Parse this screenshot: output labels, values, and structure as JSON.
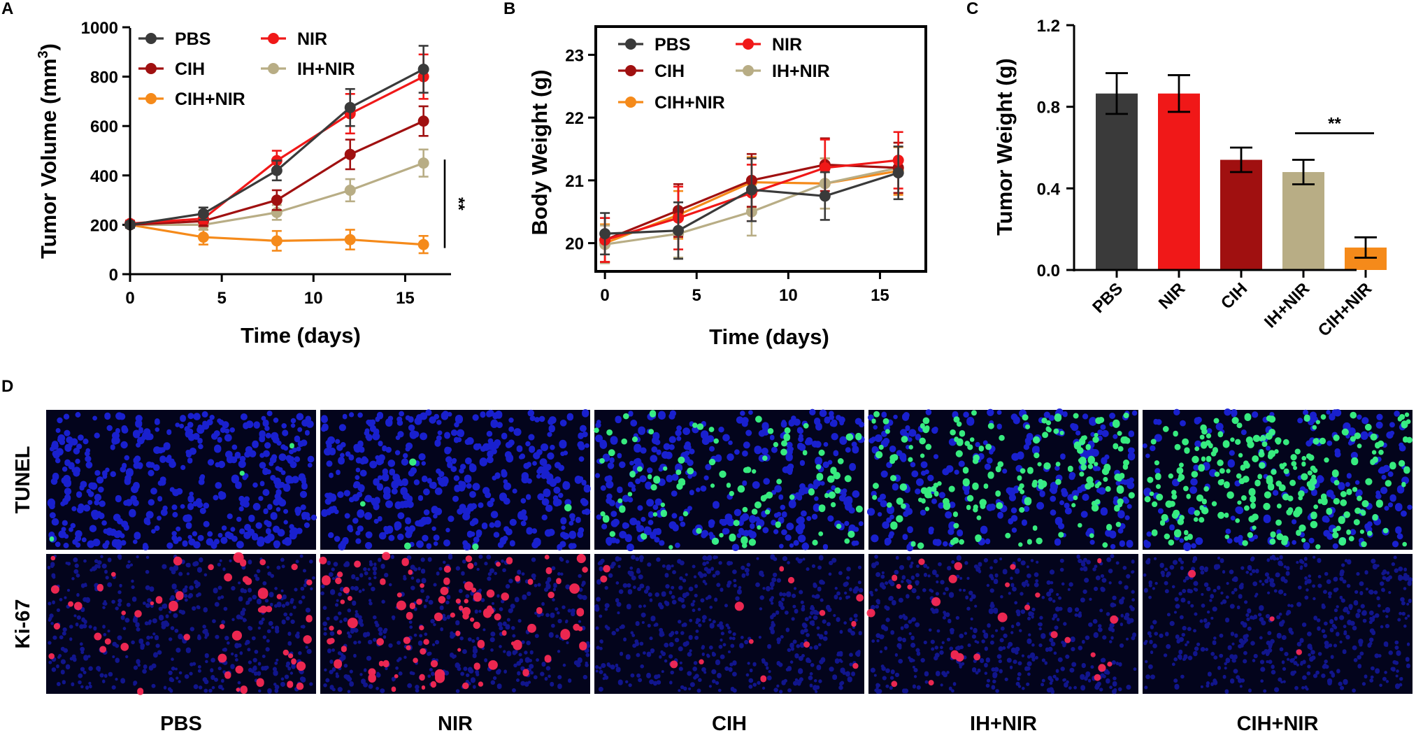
{
  "panel_labels": {
    "a": "A",
    "b": "B",
    "c": "C",
    "d": "D"
  },
  "colors": {
    "PBS": "#3a3a3a",
    "NIR": "#f01818",
    "CIH": "#a01010",
    "IH+NIR": "#b8ad85",
    "CIH+NIR": "#f58a1a",
    "cell_bg": "#03041c",
    "nucleus": "#1a22d8",
    "tunel": "#3cff88",
    "ki67": "#ff2a55"
  },
  "chart_data": [
    {
      "id": "A",
      "type": "line",
      "xlabel": "Time (days)",
      "ylabel_base": "Tumor Volume (mm",
      "ylabel_sup": "3",
      "ylabel_end": ")",
      "xlim": [
        0,
        17.5
      ],
      "ylim": [
        0,
        1000
      ],
      "xticks": [
        "0",
        "5",
        "10",
        "15"
      ],
      "xtick_values": [
        0,
        5,
        10,
        15
      ],
      "yticks": [
        "0",
        "200",
        "400",
        "600",
        "800",
        "1000"
      ],
      "ytick_values": [
        0,
        200,
        400,
        600,
        800,
        1000
      ],
      "x": [
        0,
        4,
        8,
        12,
        16
      ],
      "series": [
        {
          "name": "PBS",
          "values": [
            200,
            245,
            420,
            675,
            830
          ],
          "errors": [
            12,
            25,
            40,
            75,
            95
          ]
        },
        {
          "name": "NIR",
          "values": [
            205,
            225,
            460,
            650,
            800
          ],
          "errors": [
            12,
            20,
            40,
            80,
            90
          ]
        },
        {
          "name": "CIH",
          "values": [
            200,
            215,
            300,
            485,
            620
          ],
          "errors": [
            12,
            20,
            40,
            60,
            60
          ]
        },
        {
          "name": "IH+NIR",
          "values": [
            200,
            200,
            250,
            340,
            450
          ],
          "errors": [
            12,
            20,
            30,
            45,
            55
          ]
        },
        {
          "name": "CIH+NIR",
          "values": [
            200,
            150,
            135,
            140,
            120
          ],
          "errors": [
            12,
            30,
            40,
            40,
            35
          ]
        }
      ],
      "legend": [
        {
          "label": "PBS",
          "col": 0,
          "row": 0
        },
        {
          "label": "NIR",
          "col": 1,
          "row": 0
        },
        {
          "label": "CIH",
          "col": 0,
          "row": 1
        },
        {
          "label": "IH+NIR",
          "col": 1,
          "row": 1
        },
        {
          "label": "CIH+NIR",
          "col": 0,
          "row": 2
        }
      ],
      "significance": {
        "label": "**",
        "between": [
          "IH+NIR",
          "CIH+NIR"
        ],
        "at_day": 16
      }
    },
    {
      "id": "B",
      "type": "line",
      "xlabel": "Time (days)",
      "ylabel": "Body Weight (g)",
      "xlim": [
        -0.5,
        17.5
      ],
      "ylim": [
        19.55,
        23.45
      ],
      "xticks": [
        "0",
        "5",
        "10",
        "15"
      ],
      "xtick_values": [
        0,
        5,
        10,
        15
      ],
      "yticks": [
        "20",
        "21",
        "22",
        "23"
      ],
      "ytick_values": [
        20,
        21,
        22,
        23
      ],
      "x": [
        0,
        4,
        8,
        12,
        16
      ],
      "series": [
        {
          "name": "PBS",
          "values": [
            20.15,
            20.2,
            20.85,
            20.75,
            21.12
          ],
          "errors": [
            0.33,
            0.45,
            0.5,
            0.38,
            0.42
          ]
        },
        {
          "name": "NIR",
          "values": [
            20.05,
            20.4,
            20.8,
            21.2,
            21.32
          ],
          "errors": [
            0.35,
            0.5,
            0.45,
            0.45,
            0.45
          ]
        },
        {
          "name": "CIH",
          "values": [
            20.05,
            20.52,
            21.0,
            21.25,
            21.2
          ],
          "errors": [
            0.35,
            0.42,
            0.42,
            0.42,
            0.4
          ]
        },
        {
          "name": "IH+NIR",
          "values": [
            19.98,
            20.15,
            20.5,
            20.95,
            21.2
          ],
          "errors": [
            0.3,
            0.38,
            0.38,
            0.4,
            0.4
          ]
        },
        {
          "name": "CIH+NIR",
          "values": [
            20.0,
            20.45,
            20.97,
            20.95,
            21.15
          ],
          "errors": [
            0.3,
            0.38,
            0.4,
            0.4,
            0.38
          ]
        }
      ],
      "legend": [
        {
          "label": "PBS",
          "col": 0,
          "row": 0
        },
        {
          "label": "NIR",
          "col": 1,
          "row": 0
        },
        {
          "label": "CIH",
          "col": 0,
          "row": 1
        },
        {
          "label": "IH+NIR",
          "col": 1,
          "row": 1
        },
        {
          "label": "CIH+NIR",
          "col": 0,
          "row": 2
        }
      ]
    },
    {
      "id": "C",
      "type": "bar",
      "ylabel": "Tumor Weight (g)",
      "categories": [
        "PBS",
        "NIR",
        "CIH",
        "IH+NIR",
        "CIH+NIR"
      ],
      "values": [
        0.865,
        0.865,
        0.54,
        0.48,
        0.11
      ],
      "errors": [
        0.1,
        0.09,
        0.06,
        0.06,
        0.05
      ],
      "ylim": [
        0,
        1.2
      ],
      "yticks": [
        "0.0",
        "0.4",
        "0.8",
        "1.2"
      ],
      "ytick_values": [
        0,
        0.4,
        0.8,
        1.2
      ],
      "significance": {
        "label": "**",
        "between": [
          "IH+NIR",
          "CIH+NIR"
        ]
      }
    }
  ],
  "panel_d": {
    "rows": [
      "TUNEL",
      "Ki-67"
    ],
    "columns": [
      "PBS",
      "NIR",
      "CIH",
      "IH+NIR",
      "CIH+NIR"
    ],
    "tunel_positive_fraction": [
      0.005,
      0.01,
      0.26,
      0.42,
      0.58
    ],
    "ki67_positive_fraction": [
      0.1,
      0.22,
      0.045,
      0.045,
      0.008
    ]
  }
}
